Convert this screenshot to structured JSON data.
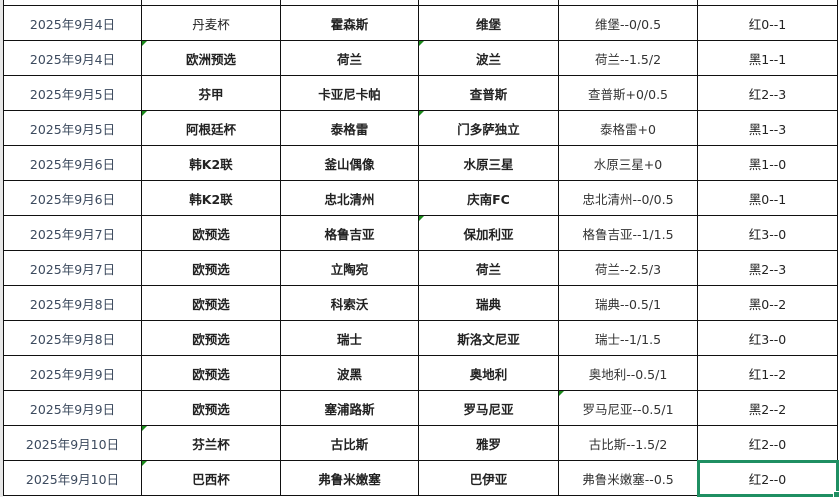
{
  "rows": [
    {
      "date": "2025年9月4日",
      "league": "丹麦杯",
      "home": "霍森斯",
      "away": "维堡",
      "handicap": "维堡--0/0.5",
      "result": "红0--1"
    },
    {
      "date": "2025年9月4日",
      "league": "欧洲预选",
      "home": "荷兰",
      "away": "波兰",
      "handicap": "荷兰--1.5/2",
      "result": "黑1--1"
    },
    {
      "date": "2025年9月5日",
      "league": "芬甲",
      "home": "卡亚尼卡帕",
      "away": "查普斯",
      "handicap": "查普斯+0/0.5",
      "result": "红2--3"
    },
    {
      "date": "2025年9月5日",
      "league": "阿根廷杯",
      "home": "泰格雷",
      "away": "门多萨独立",
      "handicap": "泰格雷+0",
      "result": "黑1--3"
    },
    {
      "date": "2025年9月6日",
      "league": "韩K2联",
      "home": "釜山偶像",
      "away": "水原三星",
      "handicap": "水原三星+0",
      "result": "黑1--0"
    },
    {
      "date": "2025年9月6日",
      "league": "韩K2联",
      "home": "忠北清州",
      "away": "庆南FC",
      "handicap": "忠北清州--0/0.5",
      "result": "黑0--1"
    },
    {
      "date": "2025年9月7日",
      "league": "欧预选",
      "home": "格鲁吉亚",
      "away": "保加利亚",
      "handicap": "格鲁吉亚--1/1.5",
      "result": "红3--0"
    },
    {
      "date": "2025年9月7日",
      "league": "欧预选",
      "home": "立陶宛",
      "away": "荷兰",
      "handicap": "荷兰--2.5/3",
      "result": "黑2--3"
    },
    {
      "date": "2025年9月8日",
      "league": "欧预选",
      "home": "科索沃",
      "away": "瑞典",
      "handicap": "瑞典--0.5/1",
      "result": "黑0--2"
    },
    {
      "date": "2025年9月8日",
      "league": "欧预选",
      "home": "瑞士",
      "away": "斯洛文尼亚",
      "handicap": "瑞士--1/1.5",
      "result": "红3--0"
    },
    {
      "date": "2025年9月9日",
      "league": "欧预选",
      "home": "波黑",
      "away": "奥地利",
      "handicap": "奥地利--0.5/1",
      "result": "红1--2"
    },
    {
      "date": "2025年9月9日",
      "league": "欧预选",
      "home": "塞浦路斯",
      "away": "罗马尼亚",
      "handicap": "罗马尼亚--0.5/1",
      "result": "黑2--2"
    },
    {
      "date": "2025年9月10日",
      "league": "芬兰杯",
      "home": "古比斯",
      "away": "雅罗",
      "handicap": "古比斯--1.5/2",
      "result": "红2--0"
    },
    {
      "date": "2025年9月10日",
      "league": "巴西杯",
      "home": "弗鲁米嫩塞",
      "away": "巴伊亚",
      "handicap": "弗鲁米嫩塞--0.5",
      "result": "红2--0"
    }
  ],
  "selected_cell_color": "#1f8f62",
  "indicator_color": "#1a8a1a"
}
